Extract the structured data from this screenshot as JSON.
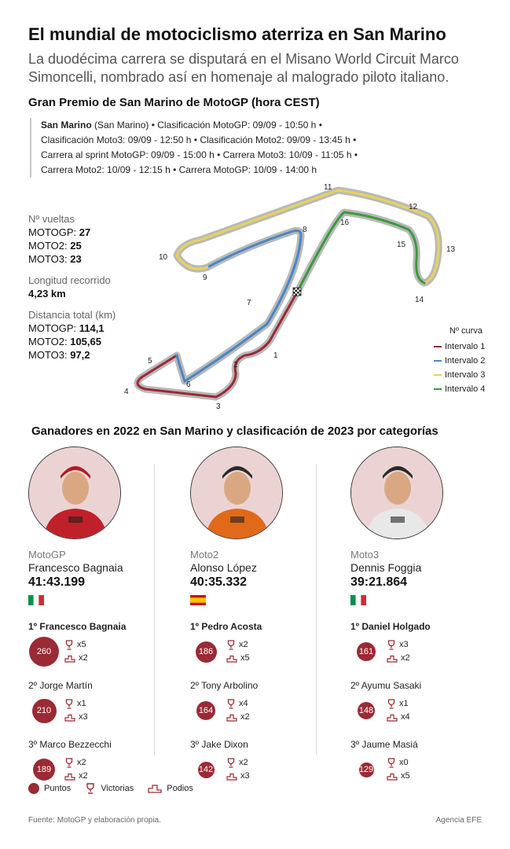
{
  "header": {
    "title": "El mundial de motociclismo aterriza en San Marino",
    "subtitle": "La duodécima carrera se disputará en el Misano World Circuit Marco Simoncelli, nombrado así en homenaje al malogrado piloto italiano."
  },
  "schedule": {
    "title": "Gran Premio de San Marino de MotoGP (hora CEST)",
    "venue_bold": "San Marino",
    "line1_rest": " (San Marino) • Clasificación MotoGP: 09/09 - 10:50 h •",
    "line2": "Clasificación Moto3: 09/09 - 12:50 h • Clasificación Moto2: 09/09 - 13:45 h •",
    "line3": "Carrera al sprint MotoGP: 09/09 - 15:00 h • Carrera Moto3: 10/09 - 11:05 h •",
    "line4": "Carrera Moto2: 10/09 - 12:15 h • Carrera MotoGP: 10/09 - 14:00 h"
  },
  "stats": {
    "laps_label": "Nº vueltas",
    "laps": [
      {
        "cat": "MOTOGP: ",
        "value": "27"
      },
      {
        "cat": "MOTO2: ",
        "value": "25"
      },
      {
        "cat": "MOTO3: ",
        "value": "23"
      }
    ],
    "length_label": "Longitud recorrido",
    "length_value": "4,23 km",
    "distance_label": "Distancia total (km)",
    "distance": [
      {
        "cat": "MOTOGP: ",
        "value": "114,1"
      },
      {
        "cat": "MOTO2: ",
        "value": "105,65"
      },
      {
        "cat": "MOTO3: ",
        "value": "97,2"
      }
    ]
  },
  "track": {
    "curve_numbers": [
      "1",
      "2",
      "3",
      "4",
      "5",
      "6",
      "7",
      "8",
      "9",
      "10",
      "11",
      "12",
      "13",
      "14",
      "15",
      "16"
    ]
  },
  "curve_legend": {
    "title": "Nº curva",
    "items": [
      {
        "label": "Intervalo 1",
        "color": "#9a2a34"
      },
      {
        "label": "Intervalo 2",
        "color": "#4a86c5"
      },
      {
        "label": "Intervalo 3",
        "color": "#e8d35a"
      },
      {
        "label": "Intervalo 4",
        "color": "#3d9a3d"
      }
    ]
  },
  "winners": {
    "title": "Ganadores en 2022 en San Marino y clasificación de 2023 por categorías",
    "columns": [
      {
        "category": "MotoGP",
        "winner": "Francesco Bagnaia",
        "time": "41:43.199",
        "flag": "italy",
        "ranking": [
          {
            "name": "1º Francesco Bagnaia",
            "points": "260",
            "wins": "x5",
            "podiums": "x2",
            "size": 1.0
          },
          {
            "name": "2º Jorge Martín",
            "points": "210",
            "wins": "x1",
            "podiums": "x3",
            "size": 0.81
          },
          {
            "name": "3º Marco Bezzecchi",
            "points": "189",
            "wins": "x2",
            "podiums": "x2",
            "size": 0.73
          }
        ]
      },
      {
        "category": "Moto2",
        "winner": "Alonso López",
        "time": "40:35.332",
        "flag": "spain",
        "ranking": [
          {
            "name": "1º Pedro Acosta",
            "points": "186",
            "wins": "x2",
            "podiums": "x5",
            "size": 0.72
          },
          {
            "name": "2º Tony Arbolino",
            "points": "164",
            "wins": "x4",
            "podiums": "x2",
            "size": 0.63
          },
          {
            "name": "3º Jake Dixon",
            "points": "142",
            "wins": "x2",
            "podiums": "x3",
            "size": 0.55
          }
        ]
      },
      {
        "category": "Moto3",
        "winner": "Dennis Foggia",
        "time": "39:21.864",
        "flag": "italy",
        "ranking": [
          {
            "name": "1º Daniel Holgado",
            "points": "161",
            "wins": "x3",
            "podiums": "x2",
            "size": 0.62
          },
          {
            "name": "2º Ayumu Sasaki",
            "points": "148",
            "wins": "x1",
            "podiums": "x4",
            "size": 0.57
          },
          {
            "name": "3º Jaume Masiá",
            "points": "129",
            "wins": "x0",
            "podiums": "x5",
            "size": 0.5
          }
        ]
      }
    ]
  },
  "bottom_legend": {
    "points": "Puntos",
    "wins": "Victorias",
    "podiums": "Podios"
  },
  "footer": {
    "source": "Fuente: MotoGP y elaboración propia.",
    "agency": "Agencia EFE"
  },
  "colors": {
    "accent": "#9a2a34",
    "track_gray": "#b9b9b9"
  }
}
